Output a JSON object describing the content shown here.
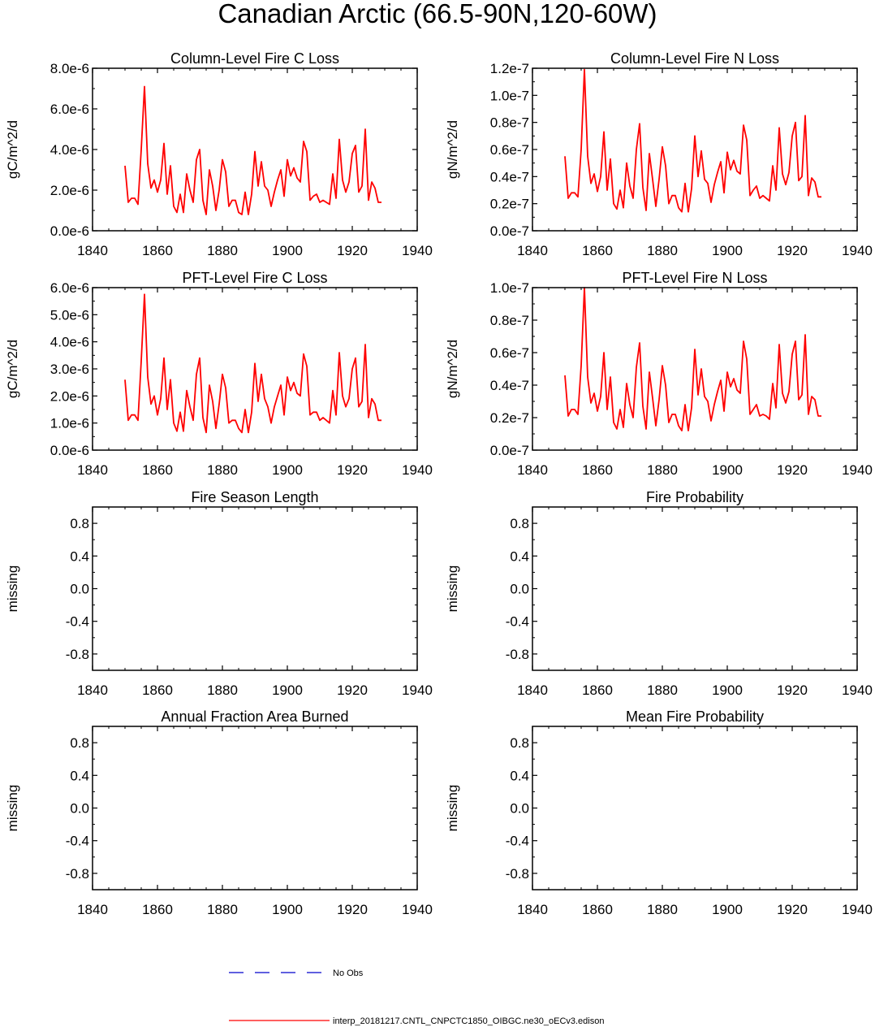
{
  "figure": {
    "title": "Canadian Arctic (66.5-90N,120-60W)",
    "legend": [
      {
        "label": "No Obs",
        "color": "#0000cc",
        "dash": "dashed"
      },
      {
        "label": "interp_20181217.CNTL_CNPCTC1850_OIBGC.ne30_oECv3.edison",
        "color": "#ff0000",
        "dash": "solid"
      }
    ]
  },
  "chart_data": [
    {
      "type": "line",
      "title": "Column-Level Fire C Loss",
      "ylabel": "gC/m^2/d",
      "xlim": [
        1840,
        1940
      ],
      "ylim": [
        0,
        8e-06
      ],
      "xticks": [
        1840,
        1860,
        1880,
        1900,
        1920,
        1940
      ],
      "xtick_labels": [
        "1840",
        "1860",
        "1880",
        "1900",
        "1920",
        "1940"
      ],
      "yticks": [
        0,
        2e-06,
        4e-06,
        6e-06,
        8e-06
      ],
      "ytick_labels": [
        "0.0e-6",
        "2.0e-6",
        "4.0e-6",
        "6.0e-6",
        "8.0e-6"
      ],
      "series": [
        {
          "name": "interp_20181217.CNTL_CNPCTC1850_OIBGC.ne30_oECv3.edison",
          "color": "#ff0000",
          "x": [
            1850,
            1851,
            1852,
            1853,
            1854,
            1855,
            1856,
            1857,
            1858,
            1859,
            1860,
            1861,
            1862,
            1863,
            1864,
            1865,
            1866,
            1867,
            1868,
            1869,
            1870,
            1871,
            1872,
            1873,
            1874,
            1875,
            1876,
            1877,
            1878,
            1879,
            1880,
            1881,
            1882,
            1883,
            1884,
            1885,
            1886,
            1887,
            1888,
            1889,
            1890,
            1891,
            1892,
            1893,
            1894,
            1895,
            1896,
            1897,
            1898,
            1899,
            1900,
            1901,
            1902,
            1903,
            1904,
            1905,
            1906,
            1907,
            1908,
            1909,
            1910,
            1911,
            1912,
            1913,
            1914,
            1915,
            1916,
            1917,
            1918,
            1919,
            1920,
            1921,
            1922,
            1923,
            1924,
            1925,
            1926,
            1927,
            1928,
            1929
          ],
          "values": [
            3.2e-06,
            1.4e-06,
            1.6e-06,
            1.6e-06,
            1.3e-06,
            4e-06,
            7.1e-06,
            3.3e-06,
            2.1e-06,
            2.5e-06,
            1.9e-06,
            2.5e-06,
            4.3e-06,
            1.8e-06,
            3.2e-06,
            1.2e-06,
            9e-07,
            1.8e-06,
            9e-07,
            2.8e-06,
            2e-06,
            1.4e-06,
            3.5e-06,
            4e-06,
            1.5e-06,
            8e-07,
            3e-06,
            2.2e-06,
            1e-06,
            2e-06,
            3.5e-06,
            2.9e-06,
            1.2e-06,
            1.5e-06,
            1.5e-06,
            9e-07,
            8e-07,
            1.9e-06,
            8e-07,
            1.8e-06,
            3.9e-06,
            2.2e-06,
            3.4e-06,
            2.2e-06,
            2e-06,
            1.2e-06,
            1.9e-06,
            2.5e-06,
            3e-06,
            1.7e-06,
            3.5e-06,
            2.7e-06,
            3.1e-06,
            2.6e-06,
            2.4e-06,
            4.4e-06,
            3.9e-06,
            1.5e-06,
            1.7e-06,
            1.8e-06,
            1.4e-06,
            1.5e-06,
            1.4e-06,
            1.3e-06,
            2.8e-06,
            1.6e-06,
            4.5e-06,
            2.5e-06,
            1.9e-06,
            2.4e-06,
            3.8e-06,
            4.2e-06,
            1.9e-06,
            2.2e-06,
            5e-06,
            1.5e-06,
            2.4e-06,
            2.1e-06,
            1.4e-06,
            1.4e-06
          ]
        }
      ]
    },
    {
      "type": "line",
      "title": "Column-Level Fire N Loss",
      "ylabel": "gN/m^2/d",
      "xlim": [
        1840,
        1940
      ],
      "ylim": [
        0,
        1.2e-07
      ],
      "xticks": [
        1840,
        1860,
        1880,
        1900,
        1920,
        1940
      ],
      "xtick_labels": [
        "1840",
        "1860",
        "1880",
        "1900",
        "1920",
        "1940"
      ],
      "yticks": [
        0,
        2e-08,
        4e-08,
        6e-08,
        8e-08,
        1e-07,
        1.2e-07
      ],
      "ytick_labels": [
        "0.0e-7",
        "0.2e-7",
        "0.4e-7",
        "0.6e-7",
        "0.8e-7",
        "1.0e-7",
        "1.2e-7"
      ],
      "series": [
        {
          "name": "interp_20181217.CNTL_CNPCTC1850_OIBGC.ne30_oECv3.edison",
          "color": "#ff0000",
          "x": [
            1850,
            1851,
            1852,
            1853,
            1854,
            1855,
            1856,
            1857,
            1858,
            1859,
            1860,
            1861,
            1862,
            1863,
            1864,
            1865,
            1866,
            1867,
            1868,
            1869,
            1870,
            1871,
            1872,
            1873,
            1874,
            1875,
            1876,
            1877,
            1878,
            1879,
            1880,
            1881,
            1882,
            1883,
            1884,
            1885,
            1886,
            1887,
            1888,
            1889,
            1890,
            1891,
            1892,
            1893,
            1894,
            1895,
            1896,
            1897,
            1898,
            1899,
            1900,
            1901,
            1902,
            1903,
            1904,
            1905,
            1906,
            1907,
            1908,
            1909,
            1910,
            1911,
            1912,
            1913,
            1914,
            1915,
            1916,
            1917,
            1918,
            1919,
            1920,
            1921,
            1922,
            1923,
            1924,
            1925,
            1926,
            1927,
            1928,
            1929
          ],
          "values": [
            5.5e-08,
            2.4e-08,
            2.8e-08,
            2.8e-08,
            2.5e-08,
            6e-08,
            1.19e-07,
            5.5e-08,
            3.5e-08,
            4.2e-08,
            2.9e-08,
            4e-08,
            7.3e-08,
            3e-08,
            5.3e-08,
            2e-08,
            1.6e-08,
            3e-08,
            1.7e-08,
            5e-08,
            3.3e-08,
            2.4e-08,
            6e-08,
            7.9e-08,
            3.2e-08,
            1.5e-08,
            5.7e-08,
            3.8e-08,
            1.8e-08,
            3.8e-08,
            6.2e-08,
            4.8e-08,
            2e-08,
            2.6e-08,
            2.6e-08,
            1.7e-08,
            1.4e-08,
            3.5e-08,
            1.4e-08,
            3.1e-08,
            7e-08,
            4e-08,
            5.9e-08,
            3.8e-08,
            3.5e-08,
            2.1e-08,
            3.4e-08,
            4.3e-08,
            5.1e-08,
            2.8e-08,
            5.8e-08,
            4.5e-08,
            5.2e-08,
            4.4e-08,
            4.2e-08,
            7.8e-08,
            6.7e-08,
            2.6e-08,
            3e-08,
            3.3e-08,
            2.4e-08,
            2.6e-08,
            2.4e-08,
            2.2e-08,
            4.8e-08,
            3e-08,
            7.6e-08,
            4.2e-08,
            3.4e-08,
            4.3e-08,
            7e-08,
            8e-08,
            3.7e-08,
            4e-08,
            8.5e-08,
            2.6e-08,
            3.9e-08,
            3.6e-08,
            2.5e-08,
            2.5e-08
          ]
        }
      ]
    },
    {
      "type": "line",
      "title": "PFT-Level Fire C Loss",
      "ylabel": "gC/m^2/d",
      "xlim": [
        1840,
        1940
      ],
      "ylim": [
        0,
        6e-06
      ],
      "xticks": [
        1840,
        1860,
        1880,
        1900,
        1920,
        1940
      ],
      "xtick_labels": [
        "1840",
        "1860",
        "1880",
        "1900",
        "1920",
        "1940"
      ],
      "yticks": [
        0,
        1e-06,
        2e-06,
        3e-06,
        4e-06,
        5e-06,
        6e-06
      ],
      "ytick_labels": [
        "0.0e-6",
        "1.0e-6",
        "2.0e-6",
        "3.0e-6",
        "4.0e-6",
        "5.0e-6",
        "6.0e-6"
      ],
      "series": [
        {
          "name": "interp_20181217.CNTL_CNPCTC1850_OIBGC.ne30_oECv3.edison",
          "color": "#ff0000",
          "x": [
            1850,
            1851,
            1852,
            1853,
            1854,
            1855,
            1856,
            1857,
            1858,
            1859,
            1860,
            1861,
            1862,
            1863,
            1864,
            1865,
            1866,
            1867,
            1868,
            1869,
            1870,
            1871,
            1872,
            1873,
            1874,
            1875,
            1876,
            1877,
            1878,
            1879,
            1880,
            1881,
            1882,
            1883,
            1884,
            1885,
            1886,
            1887,
            1888,
            1889,
            1890,
            1891,
            1892,
            1893,
            1894,
            1895,
            1896,
            1897,
            1898,
            1899,
            1900,
            1901,
            1902,
            1903,
            1904,
            1905,
            1906,
            1907,
            1908,
            1909,
            1910,
            1911,
            1912,
            1913,
            1914,
            1915,
            1916,
            1917,
            1918,
            1919,
            1920,
            1921,
            1922,
            1923,
            1924,
            1925,
            1926,
            1927,
            1928,
            1929
          ],
          "values": [
            2.6e-06,
            1.1e-06,
            1.3e-06,
            1.3e-06,
            1.1e-06,
            3.3e-06,
            5.75e-06,
            2.7e-06,
            1.7e-06,
            2e-06,
            1.3e-06,
            1.9e-06,
            3.4e-06,
            1.5e-06,
            2.6e-06,
            1e-06,
            7e-07,
            1.4e-06,
            7e-07,
            2.2e-06,
            1.6e-06,
            1.1e-06,
            2.8e-06,
            3.4e-06,
            1.2e-06,
            6.5e-07,
            2.4e-06,
            1.8e-06,
            8e-07,
            1.7e-06,
            2.8e-06,
            2.3e-06,
            1e-06,
            1.1e-06,
            1.1e-06,
            8e-07,
            6.5e-07,
            1.5e-06,
            6.5e-07,
            1.4e-06,
            3.2e-06,
            1.8e-06,
            2.8e-06,
            1.9e-06,
            1.6e-06,
            1e-06,
            1.6e-06,
            2e-06,
            2.4e-06,
            1.3e-06,
            2.7e-06,
            2.2e-06,
            2.5e-06,
            2.1e-06,
            2e-06,
            3.55e-06,
            3.1e-06,
            1.3e-06,
            1.4e-06,
            1.4e-06,
            1.1e-06,
            1.2e-06,
            1.1e-06,
            1e-06,
            2.2e-06,
            1.3e-06,
            3.6e-06,
            2e-06,
            1.6e-06,
            1.9e-06,
            3e-06,
            3.4e-06,
            1.6e-06,
            1.8e-06,
            3.9e-06,
            1.2e-06,
            1.9e-06,
            1.7e-06,
            1.1e-06,
            1.1e-06
          ]
        }
      ]
    },
    {
      "type": "line",
      "title": "PFT-Level Fire N Loss",
      "ylabel": "gN/m^2/d",
      "xlim": [
        1840,
        1940
      ],
      "ylim": [
        0,
        1e-07
      ],
      "xticks": [
        1840,
        1860,
        1880,
        1900,
        1920,
        1940
      ],
      "xtick_labels": [
        "1840",
        "1860",
        "1880",
        "1900",
        "1920",
        "1940"
      ],
      "yticks": [
        0,
        2e-08,
        4e-08,
        6e-08,
        8e-08,
        1e-07
      ],
      "ytick_labels": [
        "0.0e-7",
        "0.2e-7",
        "0.4e-7",
        "0.6e-7",
        "0.8e-7",
        "1.0e-7"
      ],
      "series": [
        {
          "name": "interp_20181217.CNTL_CNPCTC1850_OIBGC.ne30_oECv3.edison",
          "color": "#ff0000",
          "x": [
            1850,
            1851,
            1852,
            1853,
            1854,
            1855,
            1856,
            1857,
            1858,
            1859,
            1860,
            1861,
            1862,
            1863,
            1864,
            1865,
            1866,
            1867,
            1868,
            1869,
            1870,
            1871,
            1872,
            1873,
            1874,
            1875,
            1876,
            1877,
            1878,
            1879,
            1880,
            1881,
            1882,
            1883,
            1884,
            1885,
            1886,
            1887,
            1888,
            1889,
            1890,
            1891,
            1892,
            1893,
            1894,
            1895,
            1896,
            1897,
            1898,
            1899,
            1900,
            1901,
            1902,
            1903,
            1904,
            1905,
            1906,
            1907,
            1908,
            1909,
            1910,
            1911,
            1912,
            1913,
            1914,
            1915,
            1916,
            1917,
            1918,
            1919,
            1920,
            1921,
            1922,
            1923,
            1924,
            1925,
            1926,
            1927,
            1928,
            1929
          ],
          "values": [
            4.6e-08,
            2.1e-08,
            2.5e-08,
            2.5e-08,
            2.2e-08,
            5.2e-08,
            1e-07,
            4.5e-08,
            2.9e-08,
            3.5e-08,
            2.4e-08,
            3.3e-08,
            6e-08,
            2.5e-08,
            4.5e-08,
            1.7e-08,
            1.3e-08,
            2.5e-08,
            1.4e-08,
            4.1e-08,
            2.8e-08,
            2e-08,
            5.1e-08,
            6.6e-08,
            2.7e-08,
            1.3e-08,
            4.8e-08,
            3.2e-08,
            1.5e-08,
            3.1e-08,
            5.2e-08,
            4e-08,
            1.7e-08,
            2.2e-08,
            2.2e-08,
            1.5e-08,
            1.2e-08,
            2.8e-08,
            1.2e-08,
            2.6e-08,
            6.2e-08,
            3.4e-08,
            5e-08,
            3.3e-08,
            3e-08,
            1.8e-08,
            2.8e-08,
            3.6e-08,
            4.3e-08,
            2.4e-08,
            4.8e-08,
            3.9e-08,
            4.4e-08,
            3.7e-08,
            3.5e-08,
            6.7e-08,
            5.6e-08,
            2.2e-08,
            2.5e-08,
            2.8e-08,
            2.1e-08,
            2.2e-08,
            2.1e-08,
            1.9e-08,
            4.1e-08,
            2.6e-08,
            6.5e-08,
            3.5e-08,
            2.9e-08,
            3.6e-08,
            5.9e-08,
            6.7e-08,
            3.1e-08,
            3.4e-08,
            7.1e-08,
            2.2e-08,
            3.3e-08,
            3.1e-08,
            2.1e-08,
            2.1e-08
          ]
        }
      ]
    },
    {
      "type": "line",
      "title": "Fire Season Length",
      "ylabel": "missing",
      "xlim": [
        1840,
        1940
      ],
      "ylim": [
        -1,
        1
      ],
      "xticks": [
        1840,
        1860,
        1880,
        1900,
        1920,
        1940
      ],
      "xtick_labels": [
        "1840",
        "1860",
        "1880",
        "1900",
        "1920",
        "1940"
      ],
      "yticks": [
        -0.8,
        -0.4,
        0,
        0.4,
        0.8
      ],
      "ytick_labels": [
        "-0.8",
        "-0.4",
        "0.0",
        "0.4",
        "0.8"
      ],
      "series": []
    },
    {
      "type": "line",
      "title": "Fire Probability",
      "ylabel": "missing",
      "xlim": [
        1840,
        1940
      ],
      "ylim": [
        -1,
        1
      ],
      "xticks": [
        1840,
        1860,
        1880,
        1900,
        1920,
        1940
      ],
      "xtick_labels": [
        "1840",
        "1860",
        "1880",
        "1900",
        "1920",
        "1940"
      ],
      "yticks": [
        -0.8,
        -0.4,
        0,
        0.4,
        0.8
      ],
      "ytick_labels": [
        "-0.8",
        "-0.4",
        "0.0",
        "0.4",
        "0.8"
      ],
      "series": []
    },
    {
      "type": "line",
      "title": "Annual Fraction Area Burned",
      "ylabel": "missing",
      "xlim": [
        1840,
        1940
      ],
      "ylim": [
        -1,
        1
      ],
      "xticks": [
        1840,
        1860,
        1880,
        1900,
        1920,
        1940
      ],
      "xtick_labels": [
        "1840",
        "1860",
        "1880",
        "1900",
        "1920",
        "1940"
      ],
      "yticks": [
        -0.8,
        -0.4,
        0,
        0.4,
        0.8
      ],
      "ytick_labels": [
        "-0.8",
        "-0.4",
        "0.0",
        "0.4",
        "0.8"
      ],
      "series": []
    },
    {
      "type": "line",
      "title": "Mean Fire Probability",
      "ylabel": "missing",
      "xlim": [
        1840,
        1940
      ],
      "ylim": [
        -1,
        1
      ],
      "xticks": [
        1840,
        1860,
        1880,
        1900,
        1920,
        1940
      ],
      "xtick_labels": [
        "1840",
        "1860",
        "1880",
        "1900",
        "1920",
        "1940"
      ],
      "yticks": [
        -0.8,
        -0.4,
        0,
        0.4,
        0.8
      ],
      "ytick_labels": [
        "-0.8",
        "-0.4",
        "0.0",
        "0.4",
        "0.8"
      ],
      "series": []
    }
  ]
}
